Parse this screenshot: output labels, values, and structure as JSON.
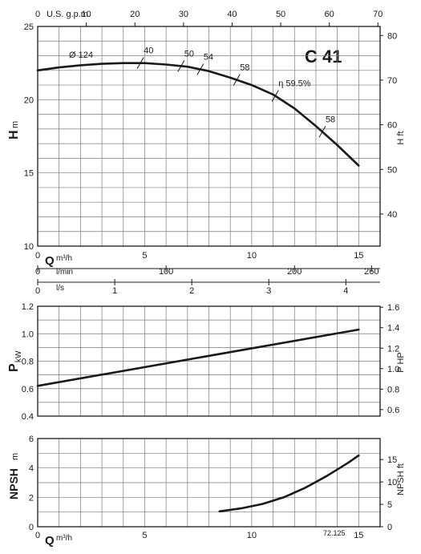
{
  "model": "C 41",
  "code": "72.125",
  "colors": {
    "ink": "#1a1a1a",
    "grid": "#7a7a7a",
    "background": "#ffffff"
  },
  "flow_scales": {
    "q_title": "Q",
    "q_unit": "m³/h",
    "usgpm_label": "U.S. g.p.m.",
    "usgpm_ticks": [
      "0",
      "10",
      "20",
      "30",
      "40",
      "50",
      "60",
      "70"
    ],
    "lmin_label": "l/min",
    "lmin_ticks": [
      "0",
      "100",
      "200",
      "260"
    ],
    "ls_label": "l/s",
    "ls_ticks": [
      "0",
      "1",
      "2",
      "3",
      "4"
    ]
  },
  "chart_data": [
    {
      "type": "line",
      "panel": "head",
      "ylabel": "H",
      "yunit": "m",
      "y2label": "H ft",
      "xlim": [
        0,
        16
      ],
      "ylim": [
        10,
        25
      ],
      "x_ticks": [
        0,
        5,
        10,
        15
      ],
      "y_ticks": [
        10,
        15,
        20,
        25
      ],
      "y2_ticks": [
        40,
        50,
        60,
        70,
        80
      ],
      "grid": true,
      "diameter_label": "Ø 124",
      "series": [
        {
          "x": [
            0,
            1,
            2,
            3,
            4,
            5,
            6,
            7,
            8,
            9,
            10,
            11,
            12,
            13,
            14,
            15
          ],
          "values": [
            22.0,
            22.2,
            22.35,
            22.45,
            22.5,
            22.5,
            22.4,
            22.25,
            21.95,
            21.5,
            21.0,
            20.35,
            19.4,
            18.2,
            16.9,
            15.5
          ]
        }
      ],
      "efficiency_marks": [
        {
          "label": "40",
          "x": 4.8
        },
        {
          "label": "50",
          "x": 6.7
        },
        {
          "label": "54",
          "x": 7.6
        },
        {
          "label": "58",
          "x": 9.3
        },
        {
          "label": "η 59.5%",
          "x": 11.1
        },
        {
          "label": "58",
          "x": 13.3
        }
      ]
    },
    {
      "type": "line",
      "panel": "power",
      "ylabel": "P",
      "yunit": "kW",
      "y2label": "P HP",
      "xlim": [
        0,
        16
      ],
      "ylim": [
        0.4,
        1.2
      ],
      "y_ticks": [
        "0.4",
        "0.6",
        "0.8",
        "1.0",
        "1.2"
      ],
      "y2_ticks": [
        "0.6",
        "0.8",
        "1.0",
        "1.2",
        "1.4",
        "1.6"
      ],
      "grid": true,
      "series": [
        {
          "x": [
            0,
            15
          ],
          "values": [
            0.62,
            1.03
          ]
        }
      ]
    },
    {
      "type": "line",
      "panel": "npsh",
      "ylabel": "NPSH",
      "yunit": "m",
      "y2label": "NPSH ft",
      "xlim": [
        0,
        16
      ],
      "ylim": [
        0,
        6
      ],
      "x_ticks": [
        0,
        5,
        10,
        15
      ],
      "y_ticks": [
        0,
        2,
        4,
        6
      ],
      "y2_ticks": [
        0,
        5,
        10,
        15
      ],
      "grid": true,
      "series": [
        {
          "x": [
            8.5,
            9.5,
            10.5,
            11.5,
            12.5,
            13.5,
            14.5,
            15
          ],
          "values": [
            1.05,
            1.25,
            1.55,
            2.0,
            2.65,
            3.45,
            4.35,
            4.85
          ]
        }
      ]
    }
  ]
}
